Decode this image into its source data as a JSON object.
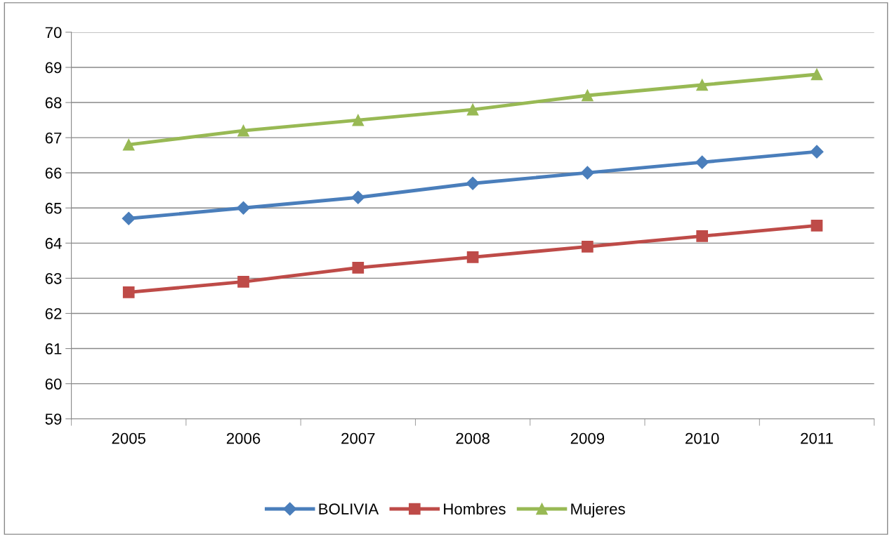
{
  "chart_data": {
    "type": "line",
    "categories": [
      "2005",
      "2006",
      "2007",
      "2008",
      "2009",
      "2010",
      "2011"
    ],
    "series": [
      {
        "name": "BOLIVIA",
        "color": "#4a7ebb",
        "marker": "diamond",
        "values": [
          64.7,
          65.0,
          65.3,
          65.7,
          66.0,
          66.3,
          66.6
        ]
      },
      {
        "name": "Hombres",
        "color": "#be4b48",
        "marker": "square",
        "values": [
          62.6,
          62.9,
          63.3,
          63.6,
          63.9,
          64.2,
          64.5
        ]
      },
      {
        "name": "Mujeres",
        "color": "#98b954",
        "marker": "triangle",
        "values": [
          66.8,
          67.2,
          67.5,
          67.8,
          68.2,
          68.5,
          68.8
        ]
      }
    ],
    "ylim": [
      59,
      70
    ],
    "yticks": [
      59,
      60,
      61,
      62,
      63,
      64,
      65,
      66,
      67,
      68,
      69,
      70
    ],
    "grid": "y",
    "legend": "bottom",
    "line_style": "solid"
  }
}
